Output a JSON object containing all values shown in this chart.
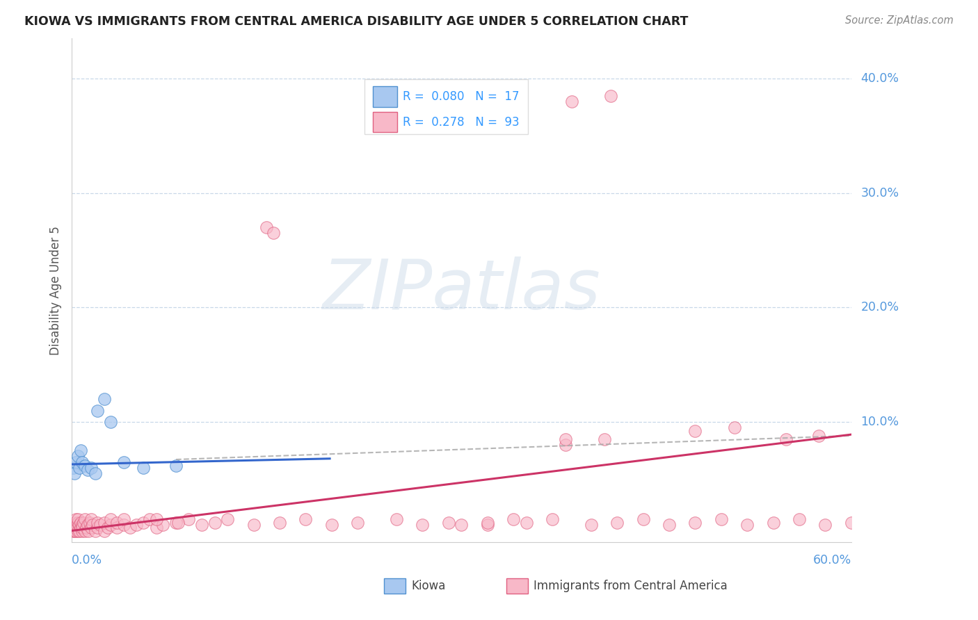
{
  "title": "KIOWA VS IMMIGRANTS FROM CENTRAL AMERICA DISABILITY AGE UNDER 5 CORRELATION CHART",
  "source": "Source: ZipAtlas.com",
  "ylabel": "Disability Age Under 5",
  "xlim": [
    0.0,
    0.6
  ],
  "ylim": [
    -0.005,
    0.435
  ],
  "ytick_vals": [
    0.1,
    0.2,
    0.3,
    0.4
  ],
  "ytick_labels": [
    "10.0%",
    "20.0%",
    "30.0%",
    "40.0%"
  ],
  "grid_color": "#c8d8e8",
  "bg_color": "#ffffff",
  "watermark_text": "ZIPatlas",
  "kiowa_color": "#a8c8f0",
  "kiowa_edge": "#5090d0",
  "ca_color": "#f8b8c8",
  "ca_edge": "#e06080",
  "blue_line_color": "#3366cc",
  "pink_line_color": "#cc3366",
  "gray_dash_color": "#aaaaaa",
  "tick_color": "#5599dd",
  "title_color": "#222222",
  "source_color": "#888888",
  "ylabel_color": "#555555",
  "legend_text_color": "#333333",
  "legend_R_color": "#3399ff",
  "kiowa_x": [
    0.001,
    0.002,
    0.003,
    0.005,
    0.006,
    0.007,
    0.008,
    0.01,
    0.012,
    0.015,
    0.018,
    0.02,
    0.025,
    0.03,
    0.04,
    0.055,
    0.08
  ],
  "kiowa_y": [
    0.06,
    0.055,
    0.065,
    0.07,
    0.06,
    0.075,
    0.065,
    0.062,
    0.058,
    0.06,
    0.055,
    0.11,
    0.12,
    0.1,
    0.065,
    0.06,
    0.062
  ],
  "ca_x": [
    0.001,
    0.001,
    0.001,
    0.002,
    0.002,
    0.002,
    0.003,
    0.003,
    0.003,
    0.004,
    0.004,
    0.005,
    0.005,
    0.005,
    0.006,
    0.006,
    0.007,
    0.007,
    0.008,
    0.008,
    0.008,
    0.009,
    0.01,
    0.01,
    0.011,
    0.012,
    0.013,
    0.014,
    0.015,
    0.015,
    0.016,
    0.018,
    0.02,
    0.02,
    0.022,
    0.025,
    0.025,
    0.028,
    0.03,
    0.03,
    0.035,
    0.035,
    0.04,
    0.04,
    0.045,
    0.05,
    0.055,
    0.06,
    0.065,
    0.07,
    0.08,
    0.09,
    0.1,
    0.11,
    0.12,
    0.14,
    0.16,
    0.18,
    0.2,
    0.22,
    0.25,
    0.27,
    0.29,
    0.32,
    0.35,
    0.37,
    0.4,
    0.42,
    0.44,
    0.46,
    0.48,
    0.5,
    0.52,
    0.54,
    0.56,
    0.58,
    0.6,
    0.38,
    0.38,
    0.41,
    0.15,
    0.155,
    0.385,
    0.415,
    0.48,
    0.51,
    0.55,
    0.575,
    0.065,
    0.082,
    0.3,
    0.32,
    0.34
  ],
  "ca_y": [
    0.005,
    0.008,
    0.01,
    0.005,
    0.01,
    0.012,
    0.008,
    0.015,
    0.005,
    0.01,
    0.008,
    0.005,
    0.012,
    0.015,
    0.005,
    0.01,
    0.008,
    0.012,
    0.005,
    0.01,
    0.008,
    0.012,
    0.005,
    0.015,
    0.008,
    0.01,
    0.005,
    0.012,
    0.008,
    0.015,
    0.01,
    0.005,
    0.008,
    0.012,
    0.01,
    0.005,
    0.012,
    0.008,
    0.01,
    0.015,
    0.008,
    0.012,
    0.01,
    0.015,
    0.008,
    0.01,
    0.012,
    0.015,
    0.008,
    0.01,
    0.012,
    0.015,
    0.01,
    0.012,
    0.015,
    0.01,
    0.012,
    0.015,
    0.01,
    0.012,
    0.015,
    0.01,
    0.012,
    0.01,
    0.012,
    0.015,
    0.01,
    0.012,
    0.015,
    0.01,
    0.012,
    0.015,
    0.01,
    0.012,
    0.015,
    0.01,
    0.012,
    0.08,
    0.085,
    0.085,
    0.27,
    0.265,
    0.38,
    0.385,
    0.092,
    0.095,
    0.085,
    0.088,
    0.015,
    0.012,
    0.01,
    0.012,
    0.015
  ]
}
